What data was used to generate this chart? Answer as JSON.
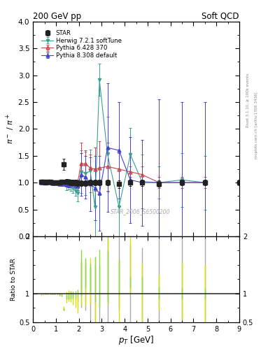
{
  "title_left": "200 GeV pp",
  "title_right": "Soft QCD",
  "ylabel_main": "$\\pi^-$ / $\\pi^+$",
  "ylabel_ratio": "Ratio to STAR",
  "xlabel": "$p_T$ [GeV]",
  "right_label_top": "Rivet 3.1.10, ≥ 100k events",
  "right_label_bot": "mcplots.cern.ch [arXiv:1306.3436]",
  "watermark": "STAR_2006_S6500200",
  "xlim": [
    0,
    9
  ],
  "ylim_main": [
    0,
    4
  ],
  "ylim_ratio": [
    0.5,
    2
  ],
  "star_x": [
    0.35,
    0.45,
    0.55,
    0.65,
    0.75,
    0.85,
    0.95,
    1.05,
    1.15,
    1.25,
    1.35,
    1.45,
    1.55,
    1.65,
    1.75,
    1.85,
    1.95,
    2.1,
    2.3,
    2.5,
    2.7,
    2.9,
    3.25,
    3.75,
    4.25,
    4.75,
    5.5,
    6.5,
    7.5,
    9.0
  ],
  "star_y": [
    1.02,
    1.01,
    1.0,
    1.01,
    1.01,
    1.0,
    1.0,
    1.0,
    1.0,
    1.01,
    1.34,
    1.02,
    1.01,
    1.0,
    1.0,
    1.0,
    0.99,
    0.99,
    0.99,
    1.0,
    1.0,
    1.0,
    1.0,
    0.97,
    1.0,
    1.0,
    0.98,
    1.0,
    1.0,
    1.0
  ],
  "star_yerr": [
    0.02,
    0.02,
    0.02,
    0.02,
    0.02,
    0.02,
    0.02,
    0.02,
    0.02,
    0.02,
    0.1,
    0.05,
    0.05,
    0.05,
    0.05,
    0.05,
    0.05,
    0.05,
    0.05,
    0.05,
    0.05,
    0.05,
    0.05,
    0.07,
    0.06,
    0.06,
    0.06,
    0.05,
    0.05,
    0.05
  ],
  "herwig_x": [
    0.35,
    0.45,
    0.55,
    0.65,
    0.75,
    0.85,
    0.95,
    1.05,
    1.15,
    1.25,
    1.35,
    1.45,
    1.55,
    1.65,
    1.75,
    1.85,
    1.95,
    2.1,
    2.3,
    2.5,
    2.7,
    2.9,
    3.25,
    3.75,
    4.25,
    4.75,
    5.5,
    6.5,
    7.5
  ],
  "herwig_y": [
    1.01,
    1.01,
    1.0,
    1.0,
    1.0,
    1.0,
    1.0,
    1.0,
    0.99,
    1.0,
    0.99,
    0.96,
    0.97,
    0.95,
    0.9,
    0.85,
    0.8,
    1.2,
    1.17,
    1.22,
    0.55,
    2.91,
    1.53,
    0.55,
    1.52,
    1.02,
    1.0,
    1.05,
    1.0
  ],
  "herwig_yerr": [
    0.01,
    0.01,
    0.01,
    0.01,
    0.01,
    0.01,
    0.01,
    0.01,
    0.01,
    0.02,
    0.05,
    0.1,
    0.1,
    0.1,
    0.1,
    0.1,
    0.15,
    0.4,
    0.4,
    0.4,
    1.1,
    0.3,
    0.7,
    1.0,
    0.5,
    0.5,
    0.3,
    0.5,
    0.5
  ],
  "pythia6_x": [
    0.35,
    0.45,
    0.55,
    0.65,
    0.75,
    0.85,
    0.95,
    1.05,
    1.15,
    1.25,
    1.35,
    1.45,
    1.55,
    1.65,
    1.75,
    1.85,
    1.95,
    2.1,
    2.3,
    2.5,
    2.7,
    2.9,
    3.25,
    3.75,
    4.25,
    4.75,
    5.5,
    6.5,
    7.5
  ],
  "pythia6_y": [
    1.0,
    1.0,
    1.0,
    1.0,
    1.0,
    0.99,
    0.99,
    0.99,
    0.98,
    0.98,
    0.97,
    0.96,
    0.96,
    0.97,
    0.98,
    1.0,
    1.0,
    1.35,
    1.35,
    1.27,
    1.25,
    1.27,
    1.3,
    1.25,
    1.2,
    1.15,
    1.0,
    1.0,
    1.0
  ],
  "pythia6_yerr": [
    0.01,
    0.01,
    0.01,
    0.01,
    0.01,
    0.01,
    0.01,
    0.01,
    0.02,
    0.02,
    0.03,
    0.04,
    0.05,
    0.06,
    0.06,
    0.05,
    0.06,
    0.4,
    0.25,
    0.25,
    0.4,
    0.5,
    0.45,
    0.3,
    0.1,
    0.15,
    0.1,
    0.1,
    0.1
  ],
  "pythia8_x": [
    0.35,
    0.45,
    0.55,
    0.65,
    0.75,
    0.85,
    0.95,
    1.05,
    1.15,
    1.25,
    1.35,
    1.45,
    1.55,
    1.65,
    1.75,
    1.85,
    1.95,
    2.1,
    2.3,
    2.5,
    2.7,
    2.9,
    3.25,
    3.75,
    4.25,
    4.75,
    5.5,
    6.5,
    7.5
  ],
  "pythia8_y": [
    1.0,
    1.0,
    1.0,
    1.0,
    1.0,
    0.99,
    0.99,
    0.99,
    0.98,
    0.98,
    0.97,
    0.96,
    0.96,
    0.97,
    0.97,
    0.95,
    0.93,
    1.15,
    1.1,
    0.97,
    0.9,
    0.8,
    1.65,
    1.6,
    1.05,
    1.0,
    1.0,
    1.0,
    1.0
  ],
  "pythia8_yerr": [
    0.01,
    0.01,
    0.01,
    0.01,
    0.01,
    0.01,
    0.01,
    0.01,
    0.02,
    0.02,
    0.03,
    0.04,
    0.05,
    0.06,
    0.06,
    0.05,
    0.07,
    0.4,
    0.4,
    0.5,
    0.6,
    0.7,
    1.2,
    0.9,
    0.8,
    0.8,
    1.55,
    1.5,
    1.5
  ],
  "herwig_color": "#3ca090",
  "pythia6_color": "#cc4444",
  "pythia8_color": "#4444cc",
  "star_color": "#222222",
  "ratio_herwig_color": "#dddd00",
  "ratio_pythia6_color": "#88dd44",
  "ratio_pythia8_color": "#aaaaaa"
}
